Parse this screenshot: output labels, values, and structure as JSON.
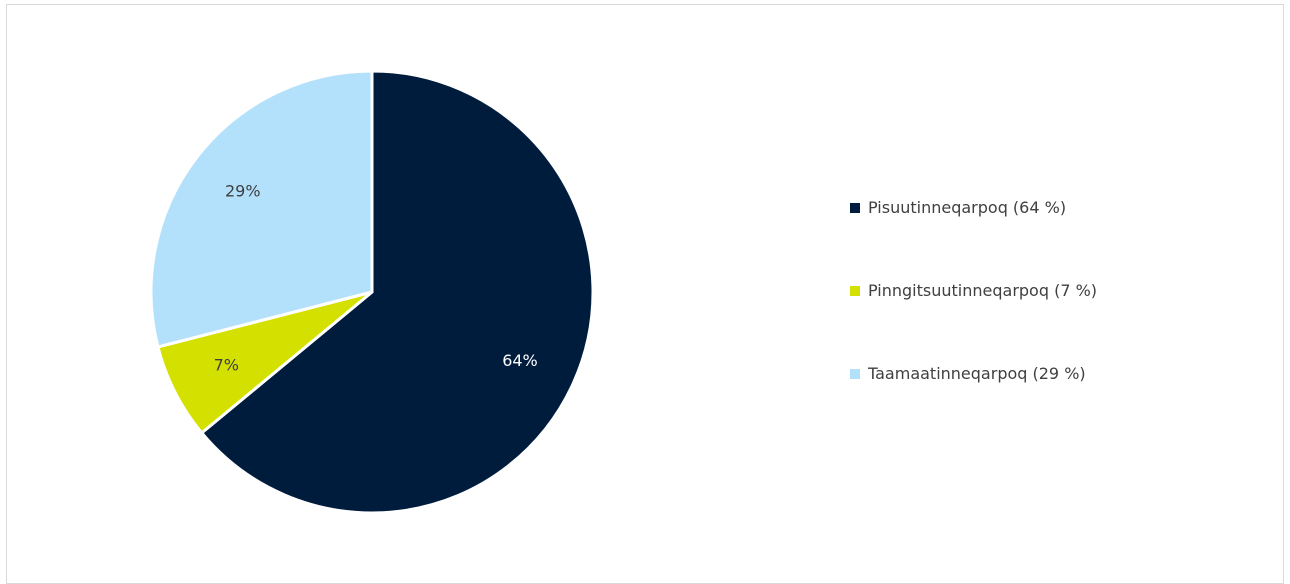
{
  "chart_data": {
    "type": "pie",
    "title": "",
    "categories": [
      "Pisuutinneqarpoq",
      "Pinngitsuutinneqarpoq",
      "Taamaatinneqarpoq"
    ],
    "values": [
      64,
      7,
      29
    ],
    "data_labels": [
      "64%",
      "7%",
      "29%"
    ],
    "legend_labels": [
      "Pisuutinneqarpoq (64 %)",
      "Pinngitsuutinneqarpoq (7 %)",
      "Taamaatinneqarpoq (29 %)"
    ],
    "colors": [
      "#001c3d",
      "#d4e100",
      "#b3e1fb"
    ],
    "label_colors": [
      "#ffffff",
      "#404040",
      "#404040"
    ],
    "legend_position": "right"
  }
}
